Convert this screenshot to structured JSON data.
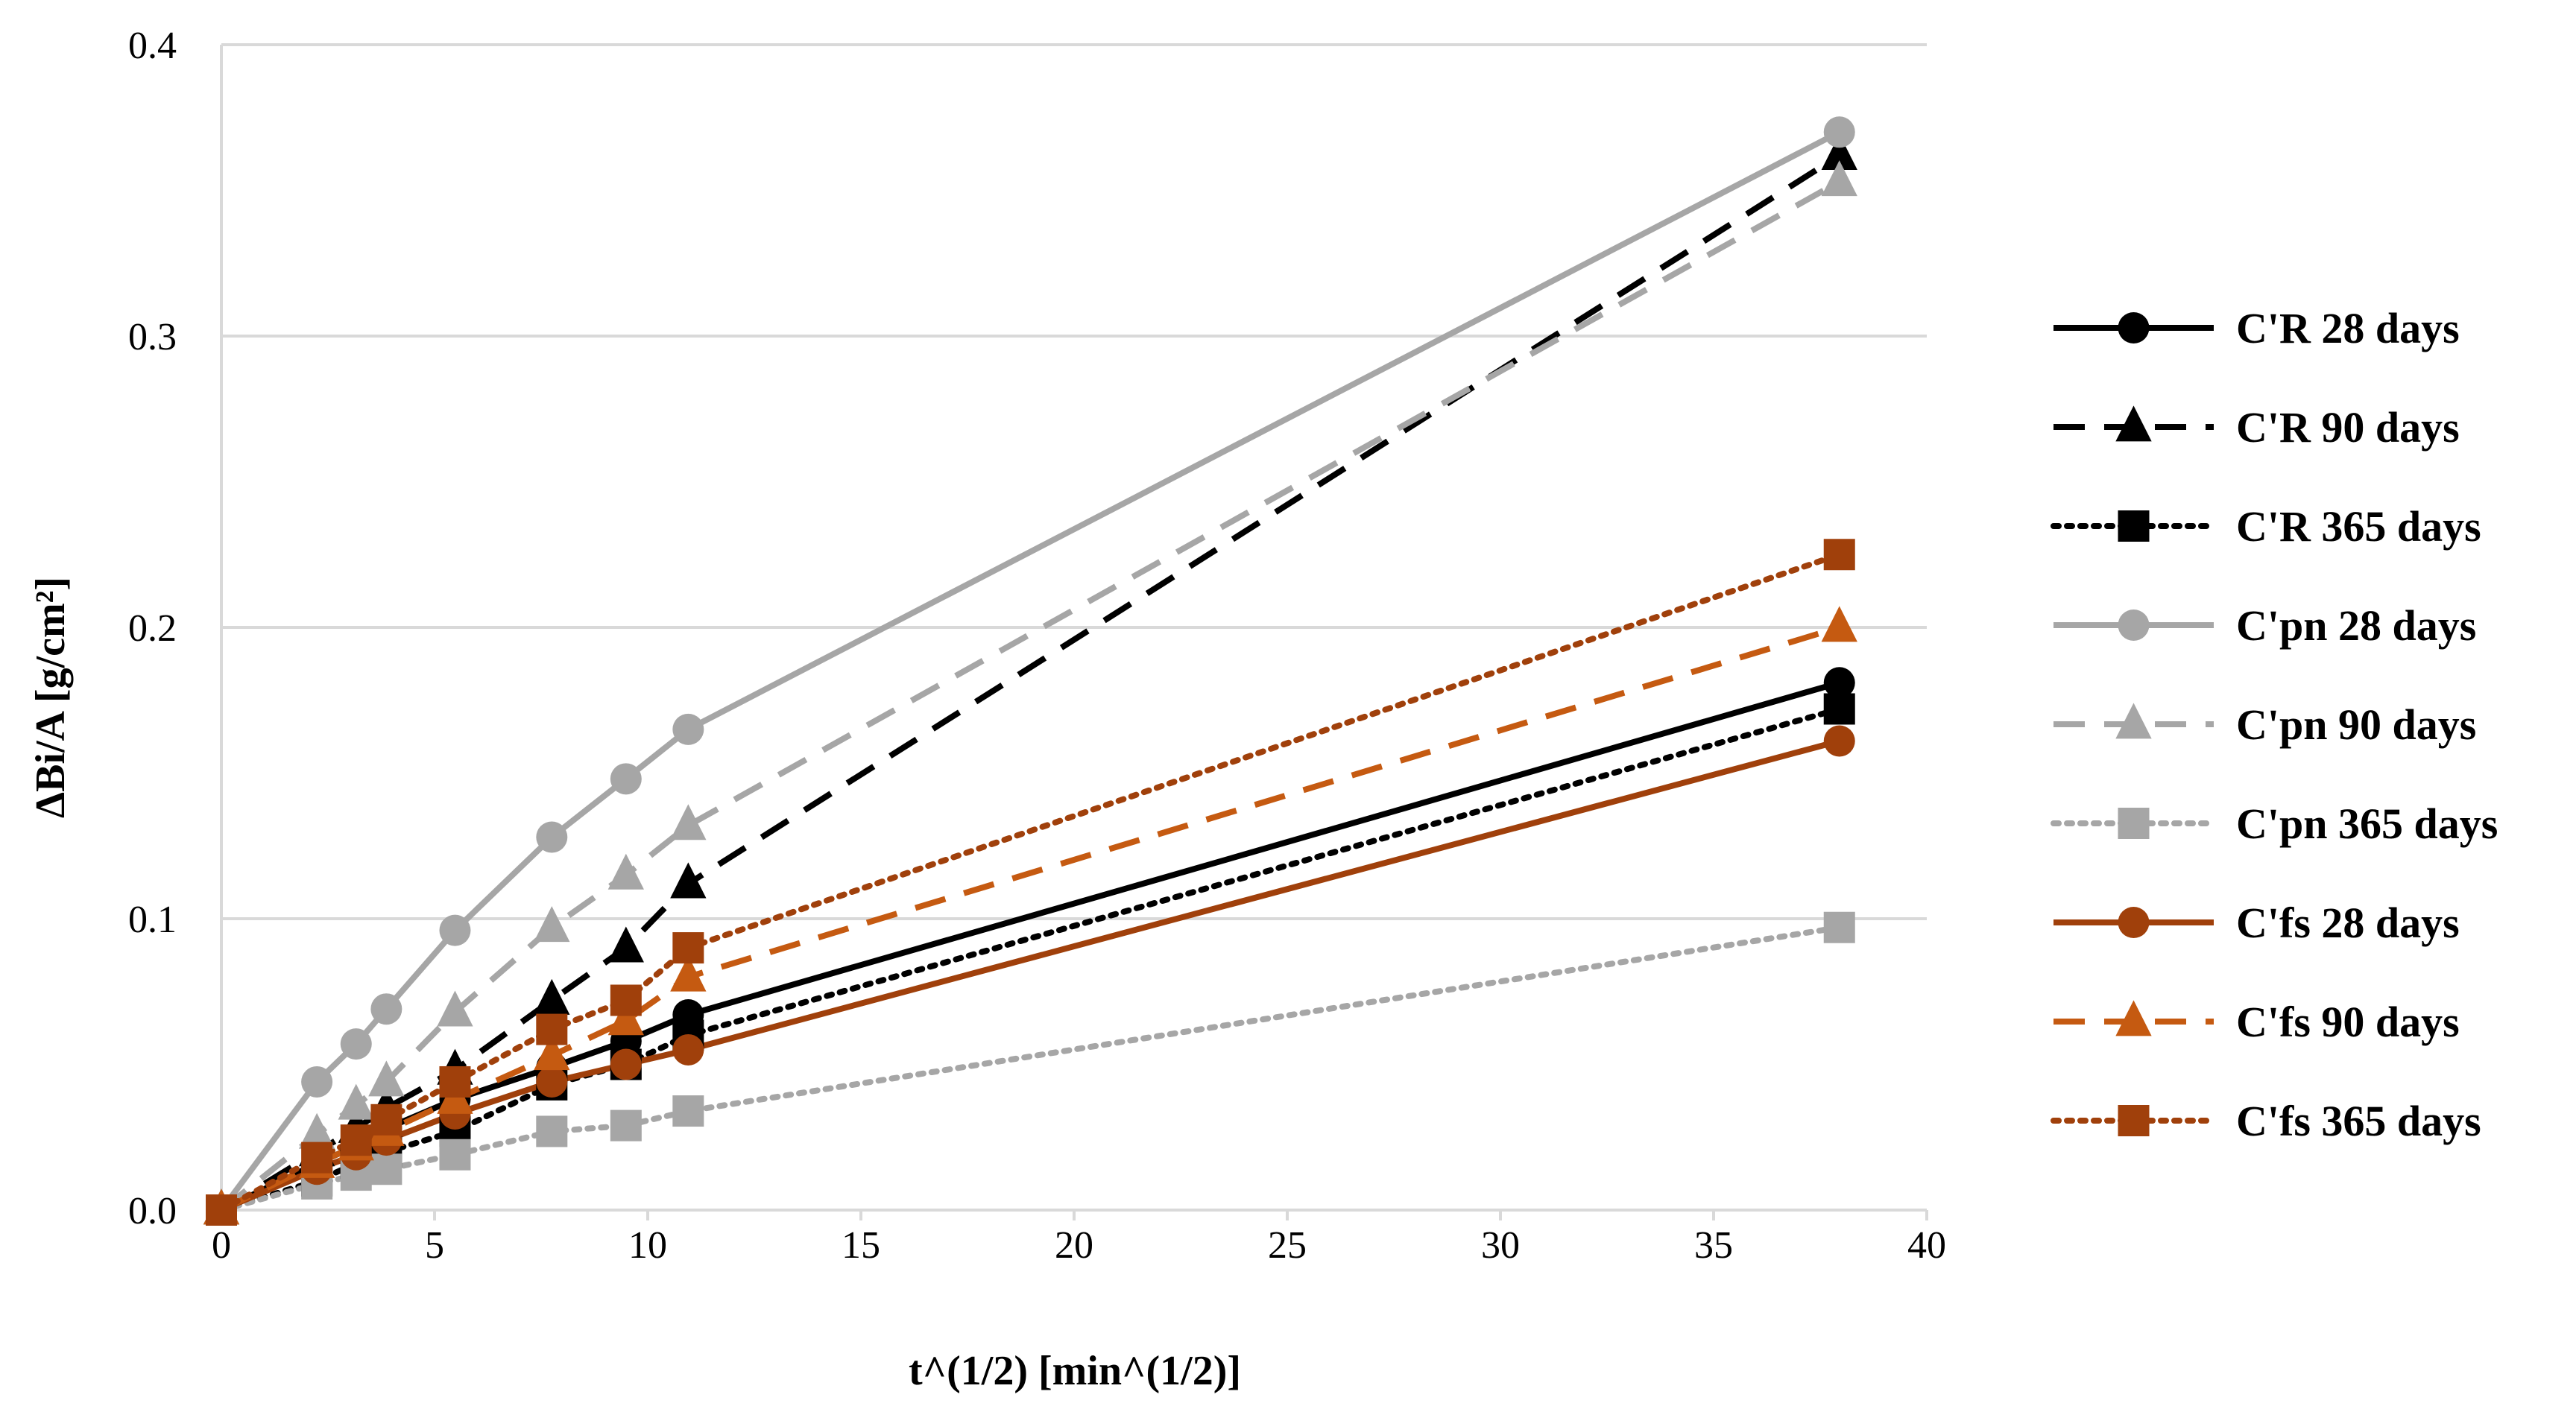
{
  "chart_data": {
    "type": "line",
    "title": "",
    "xlabel": "t^(1/2) [min^(1/2)]",
    "ylabel": "ΔBi/A [g/cm²]",
    "xlim": [
      0,
      40
    ],
    "ylim": [
      0,
      0.4
    ],
    "xticks": [
      0,
      5,
      10,
      15,
      20,
      25,
      30,
      35,
      40
    ],
    "xtick_labels": [
      "0",
      "5",
      "10",
      "15",
      "20",
      "25",
      "30",
      "35",
      "40"
    ],
    "yticks": [
      0,
      0.1,
      0.2,
      0.3,
      0.4
    ],
    "ytick_labels": [
      "0.0",
      "0.1",
      "0.2",
      "0.3",
      "0.4"
    ],
    "grid": "horizontal",
    "legend_position": "right",
    "series": [
      {
        "name": "C'R 28 days",
        "color": "#000000",
        "dash": "solid",
        "marker": "circle",
        "x": [
          0,
          2.24,
          3.16,
          3.87,
          5.48,
          7.75,
          9.49,
          10.95,
          37.95
        ],
        "y": [
          0,
          0.016,
          0.022,
          0.028,
          0.038,
          0.049,
          0.058,
          0.067,
          0.181
        ]
      },
      {
        "name": "C'R 90 days",
        "color": "#000000",
        "dash": "dashed",
        "marker": "triangle",
        "x": [
          0,
          2.24,
          3.16,
          3.87,
          5.48,
          7.75,
          9.49,
          10.95,
          37.95
        ],
        "y": [
          0,
          0.02,
          0.028,
          0.035,
          0.048,
          0.072,
          0.09,
          0.112,
          0.362
        ]
      },
      {
        "name": "C'R 365 days",
        "color": "#000000",
        "dash": "dotted",
        "marker": "square",
        "x": [
          0,
          2.24,
          3.16,
          3.87,
          5.48,
          7.75,
          9.49,
          10.95,
          37.95
        ],
        "y": [
          0,
          0.01,
          0.016,
          0.02,
          0.027,
          0.043,
          0.05,
          0.06,
          0.172
        ]
      },
      {
        "name": "C'pn 28 days",
        "color": "#A6A6A6",
        "dash": "solid",
        "marker": "circle",
        "x": [
          0,
          2.24,
          3.16,
          3.87,
          5.48,
          7.75,
          9.49,
          10.95,
          37.95
        ],
        "y": [
          0,
          0.044,
          0.057,
          0.069,
          0.096,
          0.128,
          0.148,
          0.165,
          0.37
        ]
      },
      {
        "name": "C'pn 90 days",
        "color": "#A6A6A6",
        "dash": "dashed",
        "marker": "triangle",
        "x": [
          0,
          2.24,
          3.16,
          3.87,
          5.48,
          7.75,
          9.49,
          10.95,
          37.95
        ],
        "y": [
          0,
          0.026,
          0.036,
          0.044,
          0.068,
          0.097,
          0.115,
          0.132,
          0.353
        ]
      },
      {
        "name": "C'pn 365 days",
        "color": "#A6A6A6",
        "dash": "dotted",
        "marker": "square",
        "x": [
          0,
          2.24,
          3.16,
          3.87,
          5.48,
          7.75,
          9.49,
          10.95,
          37.95
        ],
        "y": [
          0,
          0.009,
          0.012,
          0.014,
          0.019,
          0.027,
          0.029,
          0.034,
          0.097
        ]
      },
      {
        "name": "C'fs 28 days",
        "color": "#A0400B",
        "dash": "solid",
        "marker": "circle",
        "x": [
          0,
          2.24,
          3.16,
          3.87,
          5.48,
          7.75,
          9.49,
          10.95,
          37.95
        ],
        "y": [
          0,
          0.014,
          0.019,
          0.024,
          0.033,
          0.044,
          0.05,
          0.055,
          0.161
        ]
      },
      {
        "name": "C'fs 90 days",
        "color": "#C55A11",
        "dash": "dashed",
        "marker": "triangle",
        "x": [
          0,
          2.24,
          3.16,
          3.87,
          5.48,
          7.75,
          9.49,
          10.95,
          37.95
        ],
        "y": [
          0,
          0.016,
          0.022,
          0.027,
          0.038,
          0.053,
          0.065,
          0.08,
          0.2
        ]
      },
      {
        "name": "C'fs 365 days",
        "color": "#A0400B",
        "dash": "dotted",
        "marker": "square",
        "x": [
          0,
          2.24,
          3.16,
          3.87,
          5.48,
          7.75,
          9.49,
          10.95,
          37.95
        ],
        "y": [
          0,
          0.018,
          0.024,
          0.031,
          0.044,
          0.062,
          0.072,
          0.09,
          0.225
        ]
      }
    ]
  }
}
